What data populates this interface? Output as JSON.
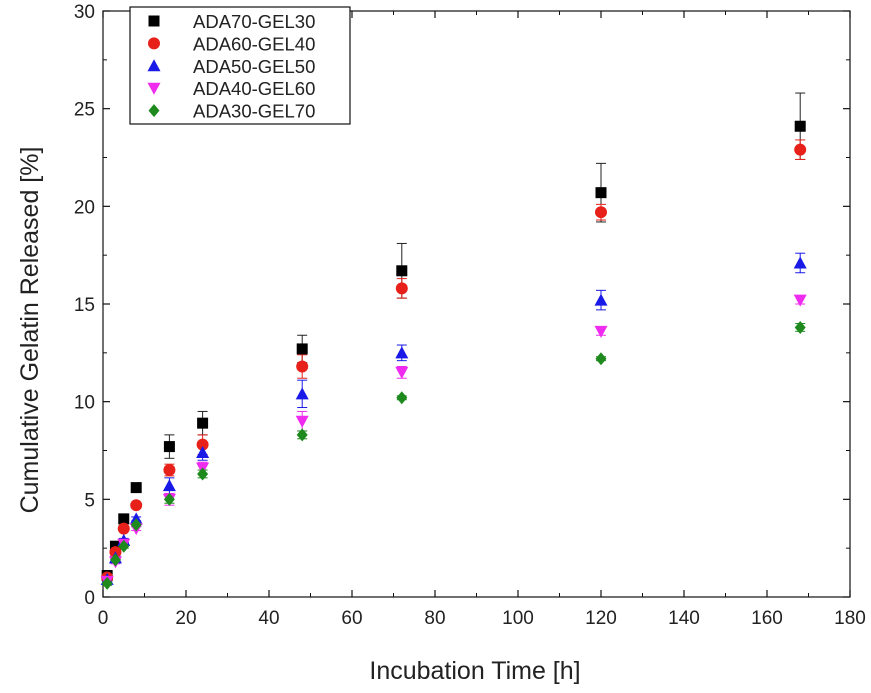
{
  "chart_data": {
    "type": "scatter",
    "xlabel": "Incubation Time [h]",
    "ylabel": "Cumulative Gelatin Released [%]",
    "xlim": [
      0,
      180
    ],
    "ylim": [
      0,
      30
    ],
    "x_ticks": [
      0,
      20,
      40,
      60,
      80,
      100,
      120,
      140,
      160,
      180
    ],
    "y_ticks": [
      0,
      5,
      10,
      15,
      20,
      25,
      30
    ],
    "grid": false,
    "legend_position": "top-left",
    "x": [
      1,
      3,
      5,
      8,
      16,
      24,
      48,
      72,
      120,
      168
    ],
    "series": [
      {
        "name": "ADA70-GEL30",
        "marker": "square",
        "color": "#000000",
        "values": [
          1.1,
          2.6,
          4.0,
          5.6,
          7.7,
          8.9,
          12.7,
          16.7,
          20.7,
          24.1
        ],
        "errors": [
          0.1,
          0.1,
          0.1,
          0.1,
          0.6,
          0.6,
          0.7,
          1.4,
          1.5,
          1.7
        ]
      },
      {
        "name": "ADA60-GEL40",
        "marker": "circle",
        "color": "#e8201a",
        "values": [
          1.0,
          2.3,
          3.5,
          4.7,
          6.5,
          7.8,
          11.8,
          15.8,
          19.7,
          22.9
        ],
        "errors": [
          0.1,
          0.1,
          0.1,
          0.1,
          0.3,
          0.5,
          0.6,
          0.5,
          0.4,
          0.5
        ]
      },
      {
        "name": "ADA50-GEL50",
        "marker": "triangle-up",
        "color": "#1a1ae8",
        "values": [
          0.9,
          2.0,
          2.9,
          4.0,
          5.7,
          7.4,
          10.4,
          12.5,
          15.2,
          17.1
        ],
        "errors": [
          0.1,
          0.1,
          0.1,
          0.1,
          0.4,
          0.4,
          0.7,
          0.4,
          0.5,
          0.5
        ]
      },
      {
        "name": "ADA40-GEL60",
        "marker": "triangle-down",
        "color": "#ee2bee",
        "values": [
          0.8,
          1.8,
          2.7,
          3.5,
          5.0,
          6.6,
          9.0,
          11.5,
          13.6,
          15.2
        ],
        "errors": [
          0.1,
          0.1,
          0.1,
          0.1,
          0.3,
          0.3,
          0.5,
          0.3,
          0.2,
          0.2
        ]
      },
      {
        "name": "ADA30-GEL70",
        "marker": "diamond",
        "color": "#1e8a1e",
        "values": [
          0.7,
          1.9,
          2.6,
          3.7,
          5.0,
          6.3,
          8.3,
          10.2,
          12.2,
          13.8
        ],
        "errors": [
          0.1,
          0.1,
          0.1,
          0.1,
          0.2,
          0.2,
          0.2,
          0.1,
          0.1,
          0.2
        ]
      }
    ]
  }
}
